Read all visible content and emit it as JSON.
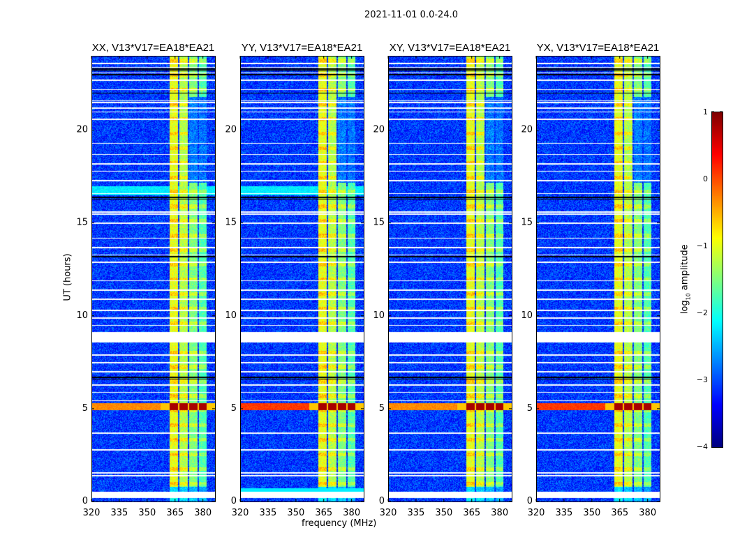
{
  "chart_data": {
    "type": "heatmap",
    "title": "2021-11-01 0.0-24.0",
    "xlabel": "frequency (MHz)",
    "ylabel": "UT (hours)",
    "xlim": [
      320,
      386.5
    ],
    "ylim": [
      0,
      24
    ],
    "xticks": [
      320,
      335,
      350,
      365,
      380
    ],
    "yticks": [
      0,
      5,
      10,
      15,
      20
    ],
    "panels": [
      {
        "title": "XX, V13*V17=EA18*EA21",
        "pol": "XX"
      },
      {
        "title": "YY, V13*V17=EA18*EA21",
        "pol": "YY"
      },
      {
        "title": "XY, V13*V17=EA18*EA21",
        "pol": "XY"
      },
      {
        "title": "YX, V13*V17=EA18*EA21",
        "pol": "YX"
      }
    ],
    "rfi_bands_mhz": [
      [
        361.8,
        366.3
      ],
      [
        367.0,
        371.5
      ],
      [
        372.3,
        376.8
      ],
      [
        377.6,
        381.7
      ]
    ],
    "strong_rfi_hours": [
      4.95,
      5.3
    ],
    "flagged_hours": [
      0.25,
      0.45,
      0.5,
      1.4,
      1.55,
      2.8,
      3.7,
      5.45,
      5.9,
      6.3,
      7.0,
      7.5,
      7.9,
      8.65,
      8.8,
      8.95,
      9.1,
      9.5,
      9.9,
      10.3,
      10.9,
      11.4,
      11.9,
      12.9,
      13.3,
      13.7,
      14.2,
      15.0,
      15.5,
      15.6,
      16.6,
      17.3,
      17.8,
      18.2,
      18.7,
      19.3,
      20.6,
      21.0,
      21.2,
      21.5,
      21.6,
      22.2,
      22.7,
      23.1,
      23.4,
      23.6
    ],
    "black_hours": [
      6.6,
      6.7,
      13.2,
      16.3,
      16.4,
      22.0,
      23.0,
      23.2,
      23.3
    ],
    "colorbar": {
      "label": "log10 amplitude",
      "label_main": "log",
      "label_sub": "10",
      "label_rest": " amplitude",
      "range": [
        -4,
        1
      ],
      "ticks": [
        1,
        0,
        -1,
        -2,
        -3,
        -4
      ],
      "tick_labels": [
        "1",
        "0",
        "−1",
        "−2",
        "−3",
        "−4"
      ],
      "colormap": "jet"
    }
  }
}
